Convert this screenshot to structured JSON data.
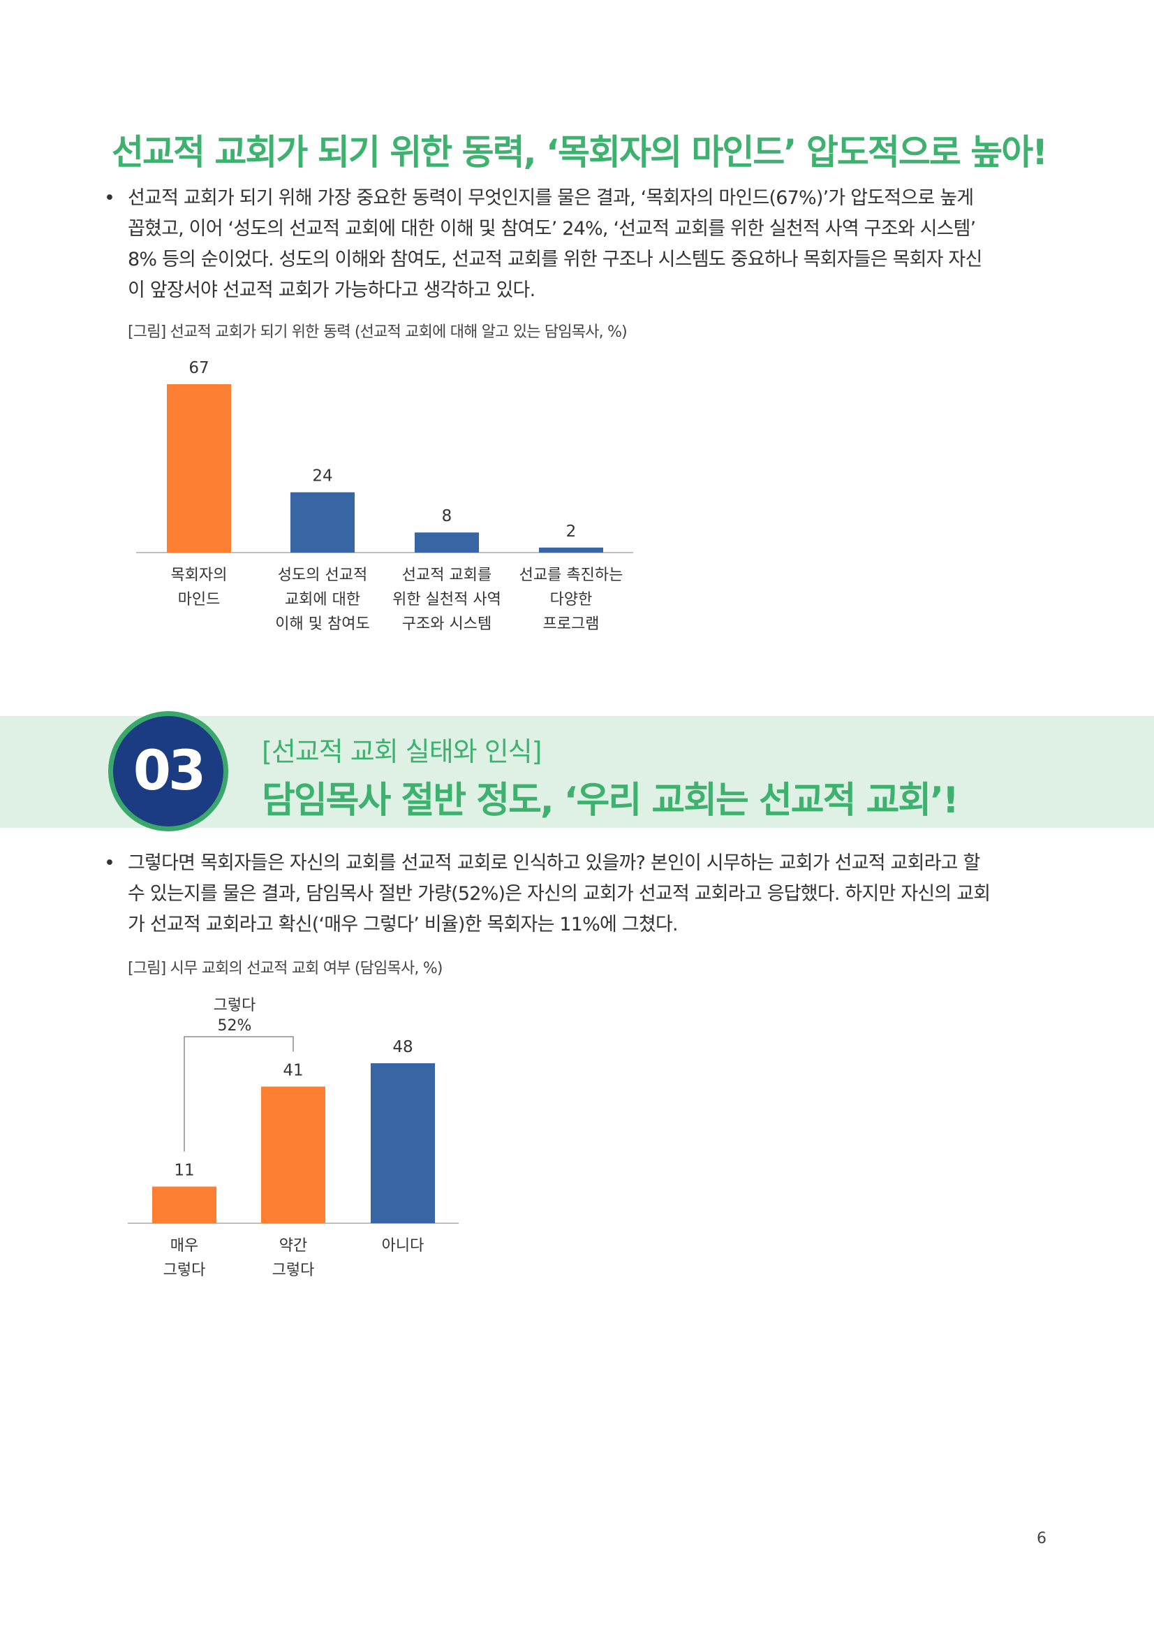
{
  "section1": {
    "heading": "선교적 교회가 되기 위한 동력, ‘목회자의 마인드’ 압도적으로 높아!",
    "bullet": "•",
    "paragraph_lines": [
      "선교적 교회가 되기 위해 가장 중요한 동력이 무엇인지를 물은 결과, ‘목회자의 마인드(67%)’가 압도적으로 높게",
      "꼽혔고, 이어 ‘성도의 선교적 교회에 대한 이해 및 참여도’ 24%, ‘선교적 교회를 위한 실천적 사역 구조와 시스템’",
      "8% 등의 순이었다. 성도의 이해와 참여도, 선교적 교회를 위한 구조나 시스템도 중요하나 목회자들은 목회자 자신",
      "이 앞장서야 선교적 교회가 가능하다고 생각하고 있다."
    ],
    "caption": "[그림] 선교적 교회가 되기 위한 동력 (선교적 교회에 대해 알고 있는 담임목사, %)"
  },
  "section3": {
    "number": "03",
    "subtitle": "[선교적 교회 실태와 인식]",
    "title": "담임목사 절반 정도, ‘우리 교회는 선교적 교회’!",
    "bullet": "•",
    "paragraph_lines": [
      "그렇다면 목회자들은 자신의 교회를 선교적 교회로 인식하고 있을까? 본인이 시무하는 교회가 선교적 교회라고 할",
      "수 있는지를 물은 결과, 담임목사 절반 가량(52%)은 자신의 교회가 선교적 교회라고 응답했다. 하지만 자신의 교회",
      "가 선교적 교회라고 확신(‘매우 그렇다’ 비율)한 목회자는 11%에 그쳤다."
    ],
    "caption": "[그림] 시무 교회의 선교적 교회 여부 (담임목사, %)"
  },
  "page_number": "6",
  "colors": {
    "green": "#3db26f",
    "orange": "#fd7f33",
    "blue": "#3865a3",
    "band": "#dff0e4",
    "badge": "#1b3c82"
  },
  "chart_data": [
    {
      "type": "bar",
      "categories": [
        [
          "목회자의",
          "마인드"
        ],
        [
          "성도의 선교적",
          "교회에 대한",
          "이해 및 참여도"
        ],
        [
          "선교적 교회를",
          "위한 실천적 사역",
          "구조와 시스템"
        ],
        [
          "선교를 촉진하는",
          "다양한",
          "프로그램"
        ]
      ],
      "values": [
        67,
        24,
        8,
        2
      ],
      "colors": [
        "#fd7f33",
        "#3865a3",
        "#3865a3",
        "#3865a3"
      ],
      "ylim": [
        0,
        67
      ],
      "grid": false,
      "title": "",
      "xlabel": "",
      "ylabel": ""
    },
    {
      "type": "bar",
      "categories": [
        [
          "매우",
          "그렇다"
        ],
        [
          "약간",
          "그렇다"
        ],
        [
          "아니다"
        ]
      ],
      "values": [
        11,
        41,
        48
      ],
      "colors": [
        "#fd7f33",
        "#fd7f33",
        "#3865a3"
      ],
      "ylim": [
        0,
        48
      ],
      "grid": false,
      "annotation": {
        "label": "그렇다",
        "value": "52%",
        "spans": [
          0,
          1
        ]
      },
      "title": "",
      "xlabel": "",
      "ylabel": ""
    }
  ]
}
